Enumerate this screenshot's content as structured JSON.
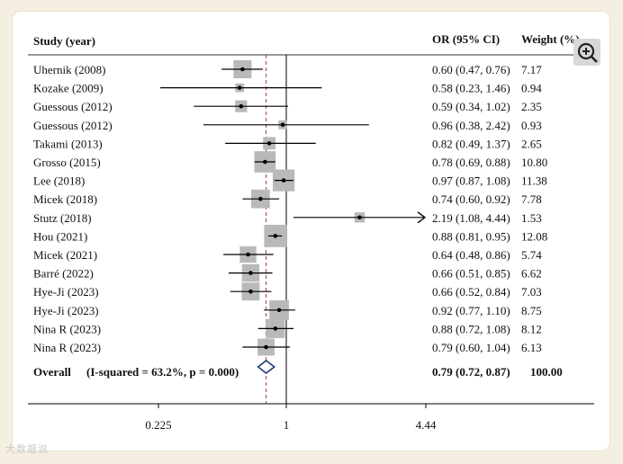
{
  "chart_data": {
    "type": "forest",
    "columns": {
      "study": "Study (year)",
      "effect": "OR (95% CI)",
      "weight": "Weight (%)"
    },
    "x_scale": "log",
    "xlim": [
      0.225,
      4.44
    ],
    "x_ticks": [
      {
        "value": 0.225,
        "label": "0.225"
      },
      {
        "value": 1,
        "label": "1"
      },
      {
        "value": 4.44,
        "label": "4.44"
      }
    ],
    "null_line": 1,
    "summary_line": 0.79,
    "studies": [
      {
        "label": "Uhernik (2008)",
        "or": 0.6,
        "lower": 0.47,
        "upper": 0.76,
        "text": "0.60 (0.47, 0.76)",
        "weight": "7.17",
        "w": 7.17
      },
      {
        "label": "Kozake (2009)",
        "or": 0.58,
        "lower": 0.23,
        "upper": 1.46,
        "text": "0.58 (0.23, 1.46)",
        "weight": "0.94",
        "w": 0.94
      },
      {
        "label": "Guessous (2012)",
        "or": 0.59,
        "lower": 0.34,
        "upper": 1.02,
        "text": "0.59 (0.34, 1.02)",
        "weight": "2.35",
        "w": 2.35
      },
      {
        "label": "Guessous (2012)",
        "or": 0.96,
        "lower": 0.38,
        "upper": 2.42,
        "text": "0.96 (0.38, 2.42)",
        "weight": "0.93",
        "w": 0.93
      },
      {
        "label": "Takami (2013)",
        "or": 0.82,
        "lower": 0.49,
        "upper": 1.37,
        "text": "0.82 (0.49, 1.37)",
        "weight": "2.65",
        "w": 2.65
      },
      {
        "label": "Grosso (2015)",
        "or": 0.78,
        "lower": 0.69,
        "upper": 0.88,
        "text": "0.78 (0.69, 0.88)",
        "weight": "10.80",
        "w": 10.8
      },
      {
        "label": "Lee (2018)",
        "or": 0.97,
        "lower": 0.87,
        "upper": 1.08,
        "text": "0.97 (0.87, 1.08)",
        "weight": "11.38",
        "w": 11.38
      },
      {
        "label": "Micek (2018)",
        "or": 0.74,
        "lower": 0.6,
        "upper": 0.92,
        "text": "0.74 (0.60, 0.92)",
        "weight": "7.78",
        "w": 7.78
      },
      {
        "label": "Stutz (2018)",
        "or": 2.19,
        "lower": 1.08,
        "upper": 4.44,
        "text": "2.19 (1.08, 4.44)",
        "weight": "1.53",
        "w": 1.53,
        "arrow": true
      },
      {
        "label": "Hou (2021)",
        "or": 0.88,
        "lower": 0.81,
        "upper": 0.95,
        "text": "0.88 (0.81, 0.95)",
        "weight": "12.08",
        "w": 12.08
      },
      {
        "label": "Micek (2021)",
        "or": 0.64,
        "lower": 0.48,
        "upper": 0.86,
        "text": "0.64 (0.48, 0.86)",
        "weight": "5.74",
        "w": 5.74
      },
      {
        "label": "Barré (2022)",
        "or": 0.66,
        "lower": 0.51,
        "upper": 0.85,
        "text": "0.66 (0.51, 0.85)",
        "weight": "6.62",
        "w": 6.62
      },
      {
        "label": "Hye-Ji (2023)",
        "or": 0.66,
        "lower": 0.52,
        "upper": 0.84,
        "text": "0.66 (0.52, 0.84)",
        "weight": "7.03",
        "w": 7.03
      },
      {
        "label": "Hye-Ji (2023)",
        "or": 0.92,
        "lower": 0.77,
        "upper": 1.1,
        "text": "0.92 (0.77, 1.10)",
        "weight": "8.75",
        "w": 8.75
      },
      {
        "label": "Nina R (2023)",
        "or": 0.88,
        "lower": 0.72,
        "upper": 1.08,
        "text": "0.88 (0.72, 1.08)",
        "weight": "8.12",
        "w": 8.12
      },
      {
        "label": "Nina R (2023)",
        "or": 0.79,
        "lower": 0.6,
        "upper": 1.04,
        "text": "0.79 (0.60, 1.04)",
        "weight": "6.13",
        "w": 6.13
      }
    ],
    "overall": {
      "label": "Overall",
      "heterogeneity": "(I-squared = 63.2%, p = 0.000)",
      "or": 0.79,
      "lower": 0.72,
      "upper": 0.87,
      "text": "0.79 (0.72, 0.87)",
      "weight": "100.00"
    },
    "colors": {
      "box": "#b9b9b9",
      "line": "#000000",
      "dashed": "#b03a3a",
      "diamond": "#1f3a7a"
    }
  },
  "watermark": "大数据说",
  "zoom_icon": "zoom-in-icon"
}
